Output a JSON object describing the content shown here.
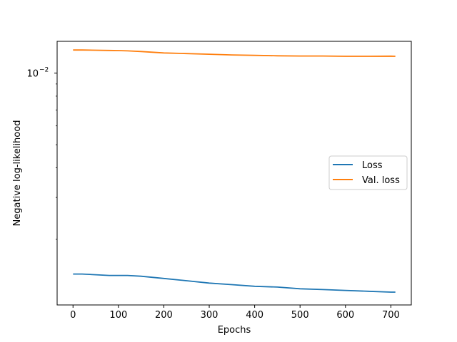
{
  "chart_data": {
    "type": "line",
    "xlabel": "Epochs",
    "ylabel": "Negative log-likelihood",
    "yscale": "log",
    "xlim": [
      -35,
      745
    ],
    "ylim": [
      0.00106,
      0.0136
    ],
    "xticks": [
      0,
      100,
      200,
      300,
      400,
      500,
      600,
      700
    ],
    "xtick_labels": [
      "0",
      "100",
      "200",
      "300",
      "400",
      "500",
      "600",
      "700"
    ],
    "yticks": [
      0.01
    ],
    "ytick_label_mantissa": "10",
    "ytick_label_exponent": "−2",
    "grid": false,
    "legend_position": "center-right",
    "series": [
      {
        "name": "Loss",
        "color": "#1f77b4",
        "x": [
          0,
          20,
          50,
          80,
          100,
          120,
          150,
          200,
          250,
          300,
          350,
          400,
          450,
          500,
          550,
          600,
          650,
          700,
          710
        ],
        "y": [
          0.00143,
          0.00143,
          0.00142,
          0.00141,
          0.00141,
          0.00141,
          0.0014,
          0.00137,
          0.00134,
          0.00131,
          0.00129,
          0.00127,
          0.00126,
          0.00124,
          0.00123,
          0.00122,
          0.00121,
          0.0012,
          0.0012
        ]
      },
      {
        "name": "Val. loss",
        "color": "#ff7f0e",
        "x": [
          0,
          20,
          50,
          80,
          100,
          120,
          150,
          200,
          250,
          300,
          350,
          400,
          450,
          500,
          550,
          600,
          650,
          700,
          710
        ],
        "y": [
          0.0125,
          0.0125,
          0.01248,
          0.01245,
          0.01243,
          0.0124,
          0.01232,
          0.01215,
          0.01208,
          0.012,
          0.01192,
          0.01187,
          0.01182,
          0.0118,
          0.0118,
          0.01177,
          0.01177,
          0.01178,
          0.01177
        ]
      }
    ]
  }
}
